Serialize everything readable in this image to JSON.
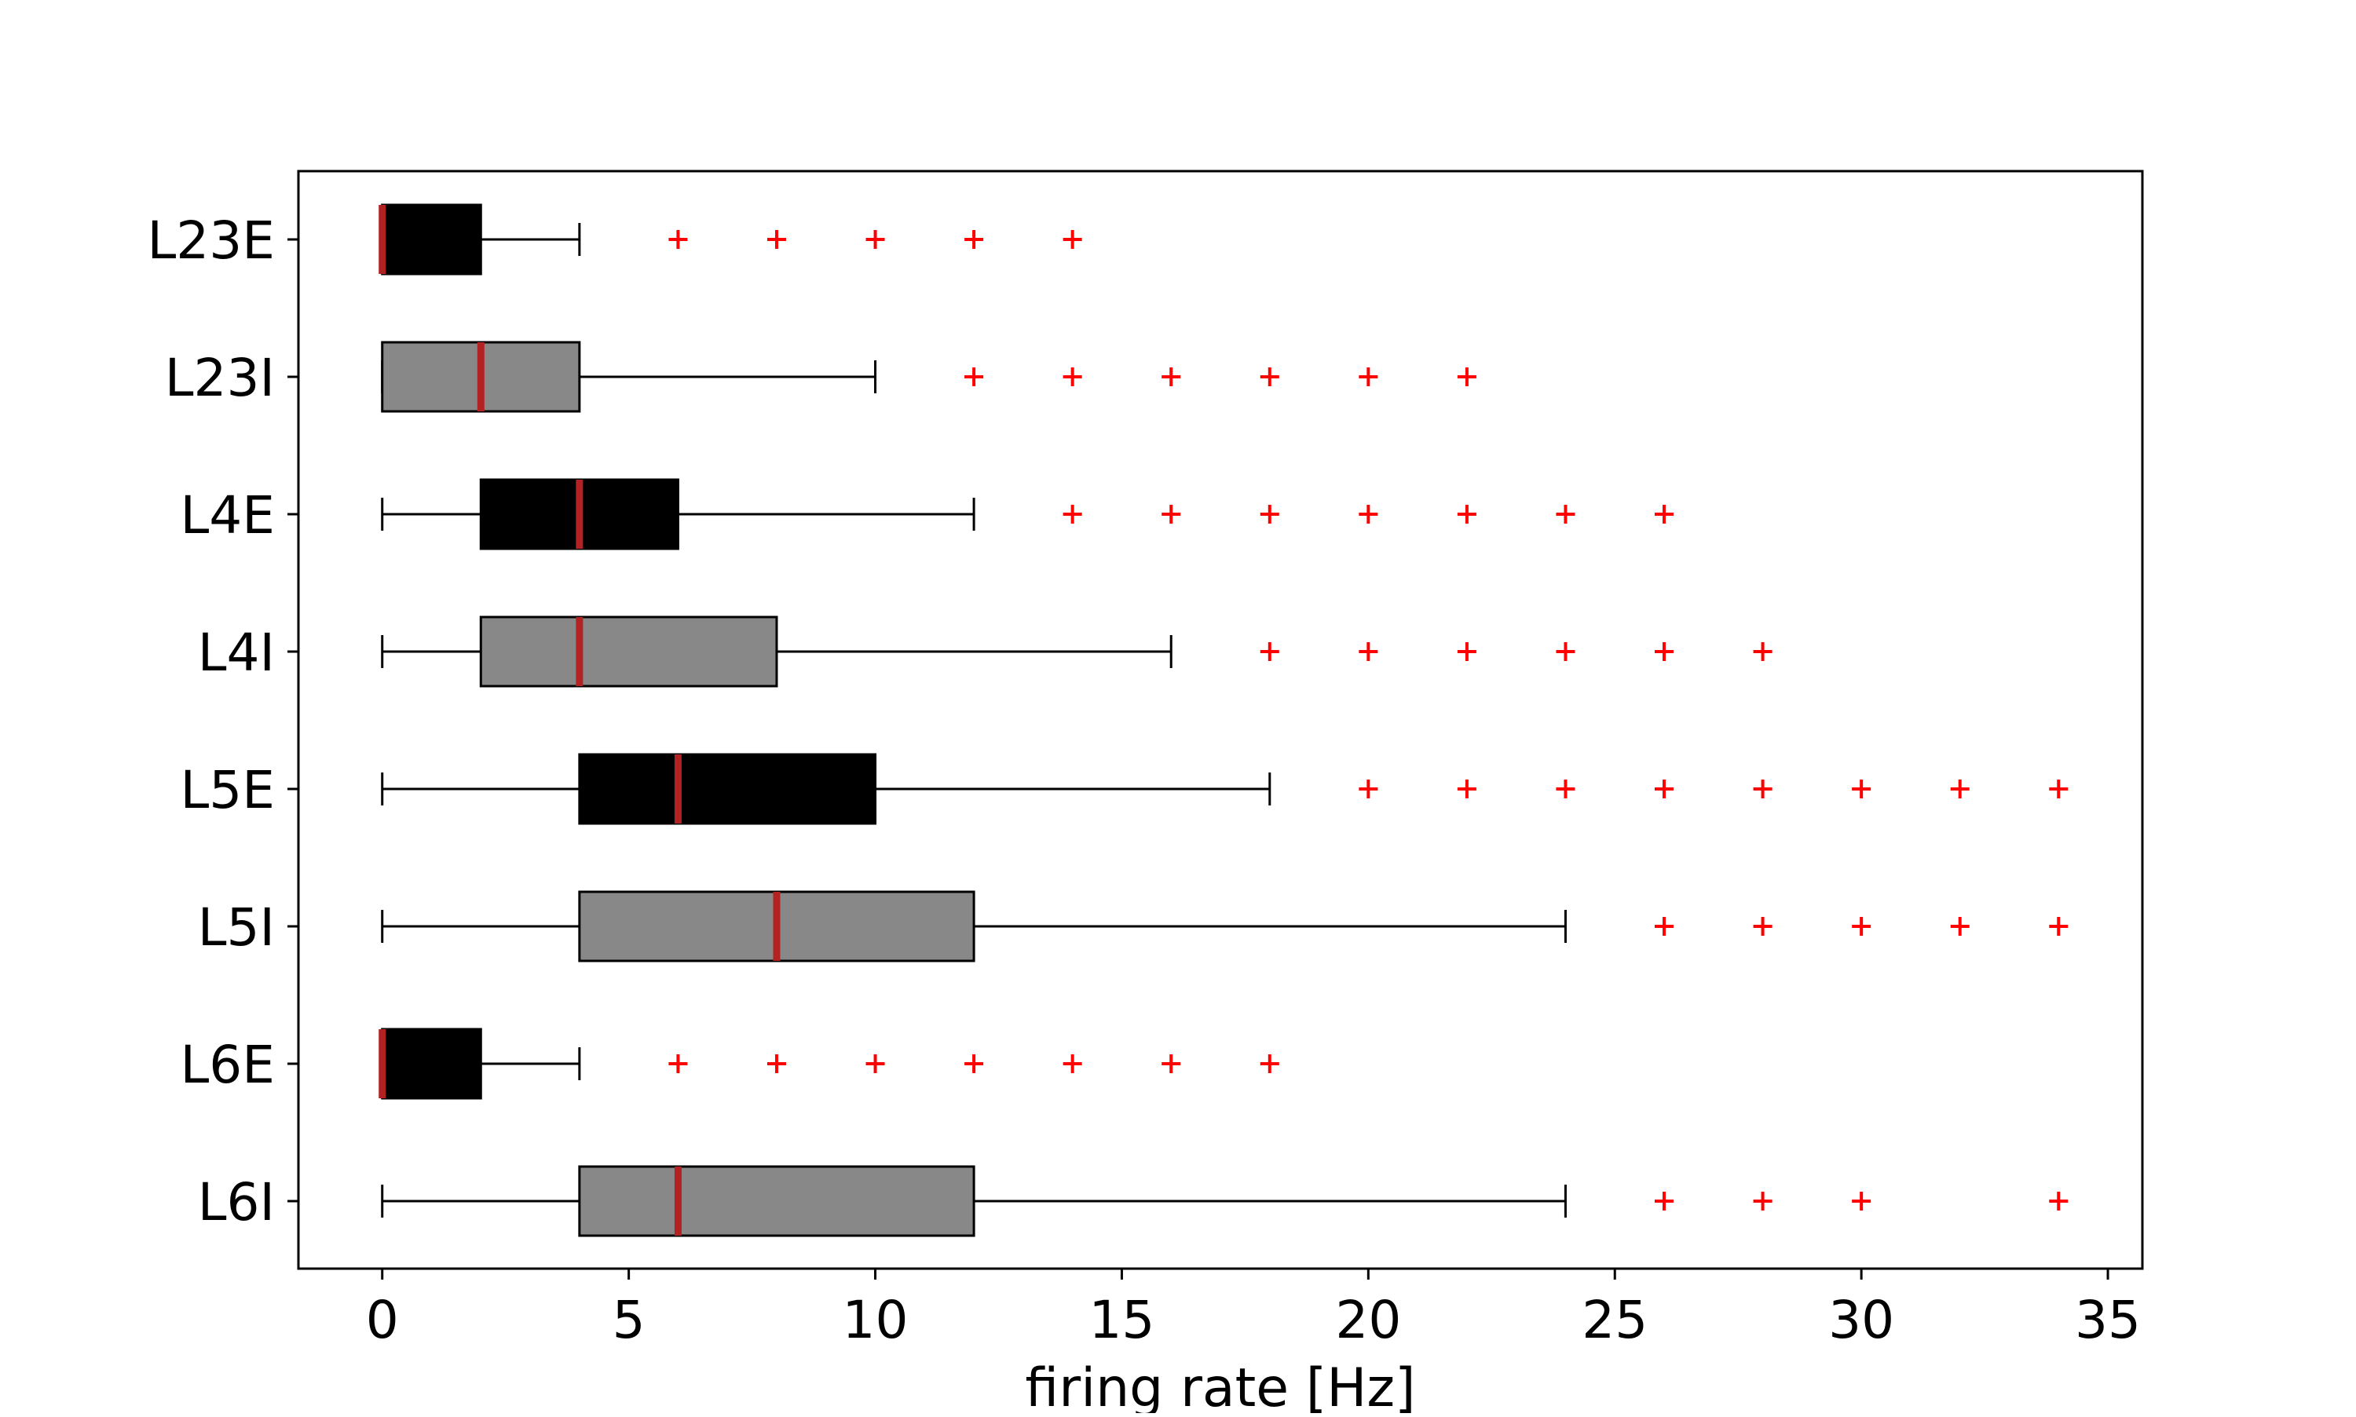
{
  "chart_data": {
    "type": "boxplot",
    "orientation": "horizontal",
    "title": "",
    "xlabel": "firing rate [Hz]",
    "ylabel": "",
    "xlim": [
      -1.7,
      35.7
    ],
    "xticks": [
      0,
      5,
      10,
      15,
      20,
      25,
      30,
      35
    ],
    "xtick_labels": [
      "0",
      "5",
      "10",
      "15",
      "20",
      "25",
      "30",
      "35"
    ],
    "grid": false,
    "colors": {
      "excitatory_fill": "#000000",
      "inhibitory_fill": "#888888",
      "median": "#b22222",
      "outlier": "#ff0000",
      "line": "#000000"
    },
    "series": [
      {
        "name": "L23E",
        "fill": "excitatory",
        "whisker_low": 0,
        "q1": 0,
        "median": 0,
        "q3": 2,
        "whisker_high": 4,
        "outliers": [
          6,
          8,
          10,
          12,
          14
        ]
      },
      {
        "name": "L23I",
        "fill": "inhibitory",
        "whisker_low": 0,
        "q1": 0,
        "median": 2,
        "q3": 4,
        "whisker_high": 10,
        "outliers": [
          12,
          14,
          16,
          18,
          20,
          22
        ]
      },
      {
        "name": "L4E",
        "fill": "excitatory",
        "whisker_low": 0,
        "q1": 2,
        "median": 4,
        "q3": 6,
        "whisker_high": 12,
        "outliers": [
          14,
          16,
          18,
          20,
          22,
          24,
          26
        ]
      },
      {
        "name": "L4I",
        "fill": "inhibitory",
        "whisker_low": 0,
        "q1": 2,
        "median": 4,
        "q3": 8,
        "whisker_high": 16,
        "outliers": [
          18,
          20,
          22,
          24,
          26,
          28
        ]
      },
      {
        "name": "L5E",
        "fill": "excitatory",
        "whisker_low": 0,
        "q1": 4,
        "median": 6,
        "q3": 10,
        "whisker_high": 18,
        "outliers": [
          20,
          22,
          24,
          26,
          28,
          30,
          32,
          34
        ]
      },
      {
        "name": "L5I",
        "fill": "inhibitory",
        "whisker_low": 0,
        "q1": 4,
        "median": 8,
        "q3": 12,
        "whisker_high": 24,
        "outliers": [
          26,
          28,
          30,
          32,
          34
        ]
      },
      {
        "name": "L6E",
        "fill": "excitatory",
        "whisker_low": 0,
        "q1": 0,
        "median": 0,
        "q3": 2,
        "whisker_high": 4,
        "outliers": [
          6,
          8,
          10,
          12,
          14,
          16,
          18
        ]
      },
      {
        "name": "L6I",
        "fill": "inhibitory",
        "whisker_low": 0,
        "q1": 4,
        "median": 6,
        "q3": 12,
        "whisker_high": 24,
        "outliers": [
          26,
          28,
          30,
          34
        ]
      }
    ]
  }
}
